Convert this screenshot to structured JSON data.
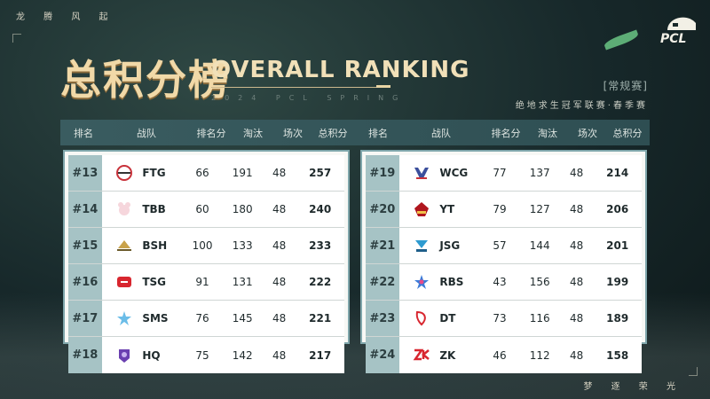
{
  "slogan_top": "龙 腾 风 起",
  "slogan_bottom": "梦 逐 荣 光",
  "logo_text": "PCL",
  "title_cn": "总积分榜",
  "title_en": "OVERALL RANKING",
  "subtitle_en": "2024 PCL SPRING",
  "stage": "[常规赛]",
  "league": "绝地求生冠军联赛·春季赛",
  "headers": {
    "rank": "排名",
    "team": "战队",
    "placement": "排名分",
    "kills": "淘汰",
    "matches": "场次",
    "total": "总积分"
  },
  "left": [
    {
      "rank": "#13",
      "team": "FTG",
      "icon": "ftg-logo-icon",
      "placement": "66",
      "kills": "191",
      "matches": "48",
      "total": "257"
    },
    {
      "rank": "#14",
      "team": "TBB",
      "icon": "tbb-logo-icon",
      "placement": "60",
      "kills": "180",
      "matches": "48",
      "total": "240"
    },
    {
      "rank": "#15",
      "team": "BSH",
      "icon": "bsh-logo-icon",
      "placement": "100",
      "kills": "133",
      "matches": "48",
      "total": "233"
    },
    {
      "rank": "#16",
      "team": "TSG",
      "icon": "tsg-logo-icon",
      "placement": "91",
      "kills": "131",
      "matches": "48",
      "total": "222"
    },
    {
      "rank": "#17",
      "team": "SMS",
      "icon": "sms-logo-icon",
      "placement": "76",
      "kills": "145",
      "matches": "48",
      "total": "221"
    },
    {
      "rank": "#18",
      "team": "HQ",
      "icon": "hq-logo-icon",
      "placement": "75",
      "kills": "142",
      "matches": "48",
      "total": "217"
    }
  ],
  "right": [
    {
      "rank": "#19",
      "team": "WCG",
      "icon": "wcg-logo-icon",
      "placement": "77",
      "kills": "137",
      "matches": "48",
      "total": "214"
    },
    {
      "rank": "#20",
      "team": "YT",
      "icon": "yt-logo-icon",
      "placement": "79",
      "kills": "127",
      "matches": "48",
      "total": "206"
    },
    {
      "rank": "#21",
      "team": "JSG",
      "icon": "jsg-logo-icon",
      "placement": "57",
      "kills": "144",
      "matches": "48",
      "total": "201"
    },
    {
      "rank": "#22",
      "team": "RBS",
      "icon": "rbs-logo-icon",
      "placement": "43",
      "kills": "156",
      "matches": "48",
      "total": "199"
    },
    {
      "rank": "#23",
      "team": "DT",
      "icon": "dt-logo-icon",
      "placement": "73",
      "kills": "116",
      "matches": "48",
      "total": "189"
    },
    {
      "rank": "#24",
      "team": "ZK",
      "icon": "zk-logo-icon",
      "placement": "46",
      "kills": "112",
      "matches": "48",
      "total": "158"
    }
  ],
  "colors": {
    "title_gold": "#f1d9a8",
    "header_bar": "#3a5c60",
    "rank_cell": "#a6c3c5",
    "panel_border": "#7fa6ab",
    "leaf_green": "#6fd08a"
  }
}
